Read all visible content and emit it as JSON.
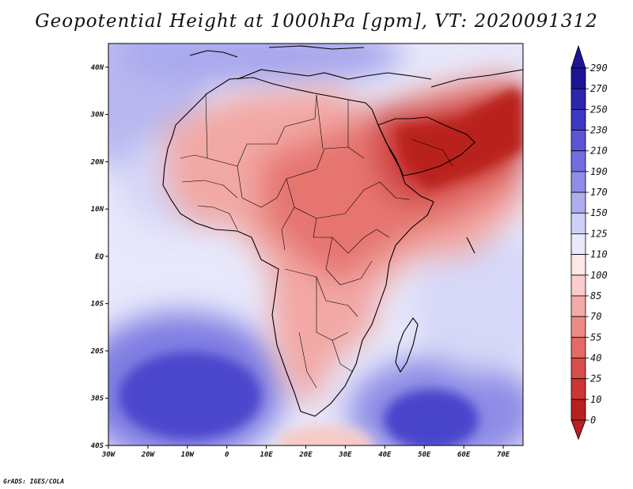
{
  "title": "Geopotential Height at 1000hPa [gpm], VT: 2020091312",
  "footer": "GrADS: IGES/COLA",
  "map": {
    "lon_range": [
      -30,
      75
    ],
    "lat_range": [
      -40,
      45
    ],
    "lon_ticks": [
      "30W",
      "20W",
      "10W",
      "0",
      "10E",
      "20E",
      "30E",
      "40E",
      "50E",
      "60E",
      "70E"
    ],
    "lat_ticks": [
      "40N",
      "30N",
      "20N",
      "10N",
      "EQ",
      "10S",
      "20S",
      "30S",
      "40S"
    ]
  },
  "colorbar": {
    "labels": [
      "290",
      "270",
      "250",
      "230",
      "210",
      "190",
      "170",
      "150",
      "125",
      "110",
      "100",
      "85",
      "70",
      "55",
      "40",
      "25",
      "10",
      "0"
    ],
    "colors": [
      "#1e1596",
      "#2c25ae",
      "#3d37c3",
      "#5a55d4",
      "#716fdd",
      "#8f8de6",
      "#aeadee",
      "#cfd0f6",
      "#e8e9fb",
      "#fde7e7",
      "#f9cdcb",
      "#f3aba8",
      "#ec8a86",
      "#e36a66",
      "#d84d4a",
      "#cc3533",
      "#b9201f"
    ]
  }
}
